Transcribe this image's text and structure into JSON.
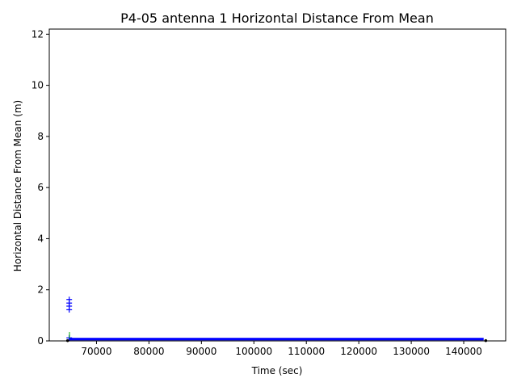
{
  "chart_data": {
    "type": "scatter",
    "title": "P4-05 antenna 1 Horizontal Distance From Mean",
    "xlabel": "Time (sec)",
    "ylabel": "Horizontal Distance From Mean (m)",
    "xlim": [
      61000,
      148000
    ],
    "ylim": [
      0,
      12.2
    ],
    "xticks": [
      70000,
      80000,
      90000,
      100000,
      110000,
      120000,
      130000,
      140000
    ],
    "xtick_labels": [
      "70000",
      "80000",
      "90000",
      "100000",
      "110000",
      "120000",
      "130000",
      "140000"
    ],
    "yticks": [
      0,
      2,
      4,
      6,
      8,
      10,
      12
    ],
    "ytick_labels": [
      "0",
      "2",
      "4",
      "6",
      "8",
      "10",
      "12"
    ],
    "grid": false,
    "series": [
      {
        "marker": "+",
        "color": "#0000ff",
        "points": [
          {
            "x": 64800,
            "y": 1.62
          },
          {
            "x": 64800,
            "y": 1.48
          },
          {
            "x": 64800,
            "y": 1.36
          },
          {
            "x": 64800,
            "y": 1.22
          },
          {
            "x": 64800,
            "y": 0.12
          }
        ],
        "band": {
          "x": [
            64800,
            143800
          ],
          "y": [
            0.02,
            0.12
          ]
        }
      },
      {
        "marker": "|",
        "color": "#00aa00",
        "points": [
          {
            "x": 64850,
            "y": 0.22
          }
        ]
      },
      {
        "marker": ".",
        "color": "#000000",
        "points": [
          {
            "x": 64500,
            "y": 0.01
          },
          {
            "x": 144200,
            "y": 0.01
          }
        ]
      }
    ]
  }
}
